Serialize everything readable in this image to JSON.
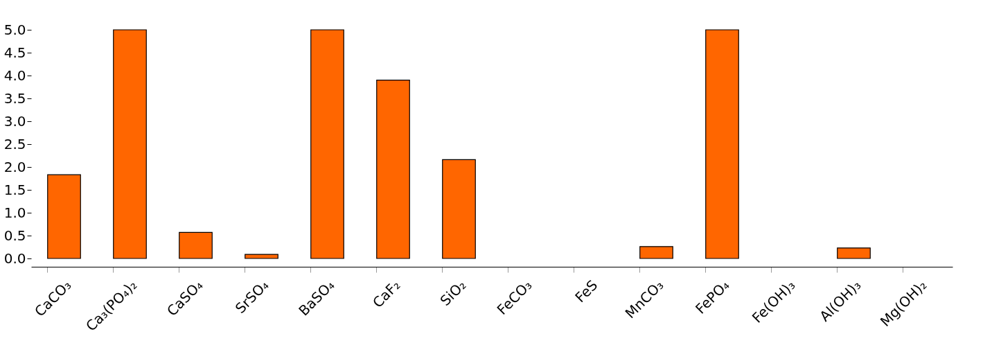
{
  "chart_data": {
    "type": "bar",
    "categories": [
      "CaCO₃",
      "Ca₃(PO₄)₂",
      "CaSO₄",
      "SrSO₄",
      "BaSO₄",
      "CaF₂",
      "SiO₂",
      "FeCO₃",
      "FeS",
      "MnCO₃",
      "FePO₄",
      "Fe(OH)₃",
      "Al(OH)₃",
      "Mg(OH)₂"
    ],
    "values": [
      1.83,
      5.0,
      0.57,
      0.09,
      5.0,
      3.9,
      2.16,
      null,
      null,
      0.26,
      5.0,
      null,
      0.23,
      null
    ],
    "color": "#ff6600",
    "ylim": [
      0,
      5.0
    ],
    "yticks": [
      {
        "value": 0,
        "label": "0.0"
      },
      {
        "value": 0.5,
        "label": "0.5"
      },
      {
        "value": 1,
        "label": "1.0"
      },
      {
        "value": 1.5,
        "label": "1.5"
      },
      {
        "value": 2,
        "label": "2.0"
      },
      {
        "value": 2.5,
        "label": "2.5"
      },
      {
        "value": 3,
        "label": "3.0"
      },
      {
        "value": 3.5,
        "label": "3.5"
      },
      {
        "value": 4,
        "label": "4.0"
      },
      {
        "value": 4.5,
        "label": "4.5"
      },
      {
        "value": 5,
        "label": "5.0"
      }
    ],
    "grid": false
  }
}
